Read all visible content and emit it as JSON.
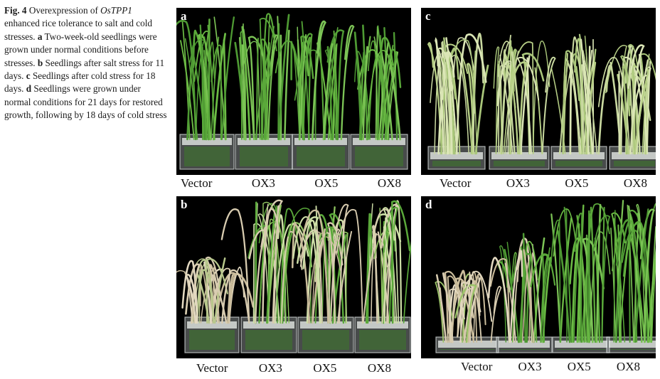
{
  "caption": {
    "fig": "Fig. 4",
    "title_pre": "Overexpression of",
    "gene": "OsTPP1",
    "title_post": "enhanced rice tolerance to salt and cold stresses.",
    "a_letter": "a",
    "a_text": "Two-week-old seedlings were grown under normal conditions before stresses.",
    "b_letter": "b",
    "b_text": "Seedlings after salt stress for 11 days.",
    "c_letter": "c",
    "c_text": "Seedlings after cold stress for 18 days.",
    "d_letter": "d",
    "d_text": "Seedlings were grown under normal conditions for 21 days for restored growth, following by 18 days of cold stress"
  },
  "panels": {
    "a": {
      "letter": "a",
      "labels": [
        "Vector",
        "OX3",
        "OX5",
        "OX8"
      ]
    },
    "b": {
      "letter": "b",
      "labels": [
        "Vector",
        "OX3",
        "OX5",
        "OX8"
      ]
    },
    "c": {
      "letter": "c",
      "labels": [
        "Vector",
        "OX3",
        "OX5",
        "OX8"
      ]
    },
    "d": {
      "letter": "d",
      "labels": [
        "Vector",
        "OX3",
        "OX5",
        "OX8"
      ]
    }
  },
  "colors": {
    "background": "#000000",
    "healthy_leaf": "#5aa83a",
    "pale_leaf": "#c9d9a0",
    "dead_leaf": "#d8ccb0",
    "container": "#cfd8d8"
  }
}
